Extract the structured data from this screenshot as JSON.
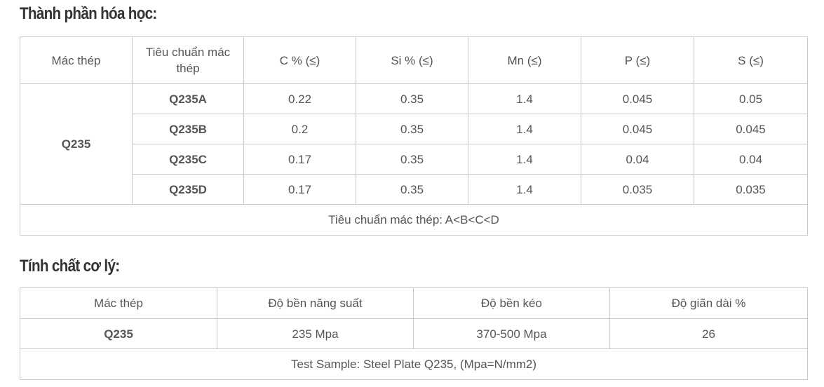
{
  "sections": [
    {
      "heading": "Thành phần hóa học:",
      "table": {
        "header": [
          "Mác thép",
          "Tiêu chuẩn mác thép",
          "C % (≤)",
          "Si % (≤)",
          "Mn (≤)",
          "P (≤)",
          "S (≤)"
        ],
        "group": "Q235",
        "rows": [
          [
            "Q235A",
            0.22,
            0.35,
            1.4,
            0.045,
            0.05
          ],
          [
            "Q235B",
            0.2,
            0.35,
            1.4,
            0.045,
            0.045
          ],
          [
            "Q235C",
            0.17,
            0.35,
            1.4,
            0.04,
            0.04
          ],
          [
            "Q235D",
            0.17,
            0.35,
            1.4,
            0.035,
            0.035
          ]
        ],
        "note": "Tiêu chuẩn mác thép: A<B<C<D"
      }
    },
    {
      "heading": "Tính chất cơ lý:",
      "table": {
        "header": [
          "Mác thép",
          "Độ bền năng suất",
          "Độ bền kéo",
          "Độ giãn dài %"
        ],
        "rows": [
          [
            "Q235",
            "235 Mpa",
            "370-500 Mpa",
            26
          ]
        ],
        "note": "Test Sample: Steel Plate Q235, (Mpa=N/mm2)"
      }
    }
  ]
}
